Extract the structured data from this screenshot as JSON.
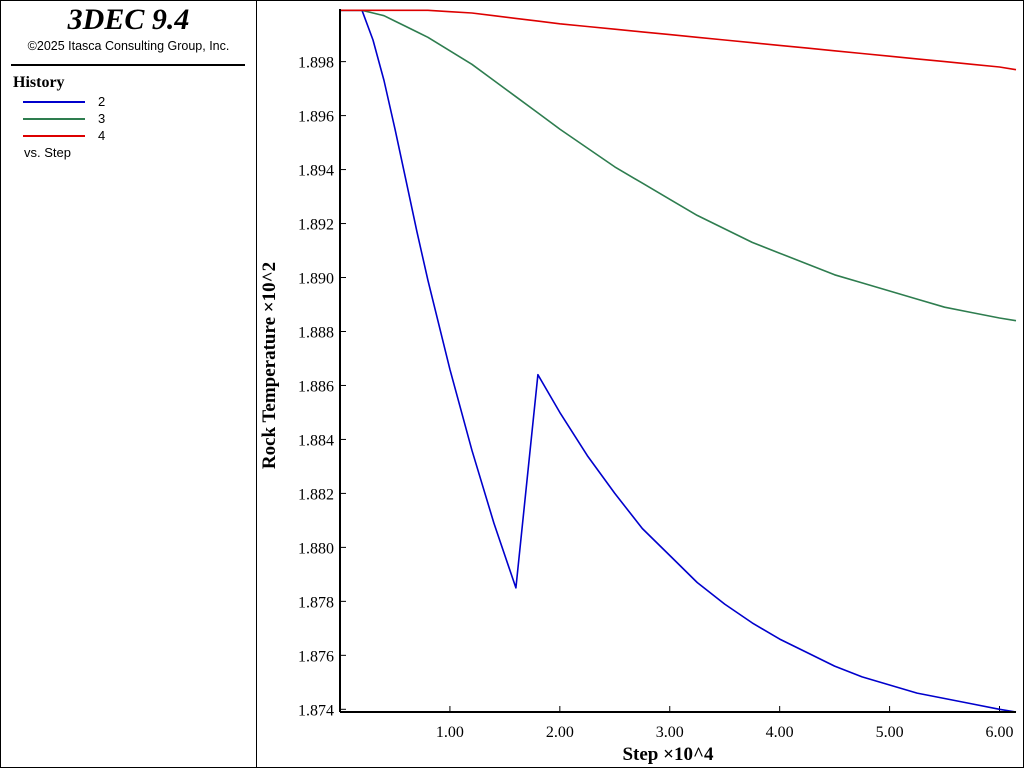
{
  "app": {
    "title": "3DEC 9.4",
    "copyright": "©2025 Itasca Consulting Group, Inc."
  },
  "legend": {
    "title": "History",
    "items": [
      {
        "label": "2",
        "color": "#0000cc"
      },
      {
        "label": "3",
        "color": "#2e7d4f"
      },
      {
        "label": "4",
        "color": "#dd0000"
      }
    ],
    "vs_label": "vs. Step"
  },
  "chart_data": {
    "type": "line",
    "xlabel": "Step ×10^4",
    "ylabel": "Rock Temperature ×10^2",
    "xlim": [
      0,
      6.15
    ],
    "ylim": [
      1.8739,
      1.89995
    ],
    "xticks": [
      1.0,
      2.0,
      3.0,
      4.0,
      5.0,
      6.0
    ],
    "xtick_labels": [
      "1.00",
      "2.00",
      "3.00",
      "4.00",
      "5.00",
      "6.00"
    ],
    "yticks": [
      1.874,
      1.876,
      1.878,
      1.88,
      1.882,
      1.884,
      1.886,
      1.888,
      1.89,
      1.892,
      1.894,
      1.896,
      1.898
    ],
    "ytick_labels": [
      "1.874",
      "1.876",
      "1.878",
      "1.880",
      "1.882",
      "1.884",
      "1.886",
      "1.888",
      "1.890",
      "1.892",
      "1.894",
      "1.896",
      "1.898"
    ],
    "grid": false,
    "x": [
      0.0,
      0.1,
      0.2,
      0.3,
      0.4,
      0.5,
      0.6,
      0.7,
      0.8,
      1.0,
      1.2,
      1.4,
      1.6,
      1.8,
      2.0,
      2.25,
      2.5,
      2.75,
      3.0,
      3.25,
      3.5,
      3.75,
      4.0,
      4.25,
      4.5,
      4.75,
      5.0,
      5.25,
      5.5,
      5.75,
      6.0,
      6.15
    ],
    "series": [
      {
        "name": "2",
        "color": "#0000cc",
        "values": [
          1.8999,
          1.8999,
          1.8999,
          1.8988,
          1.8973,
          1.8955,
          1.8936,
          1.8917,
          1.8899,
          1.8866,
          1.8836,
          1.8809,
          1.8785,
          1.8864,
          1.885,
          1.8834,
          1.882,
          1.8807,
          1.8797,
          1.8787,
          1.8779,
          1.8772,
          1.8766,
          1.8761,
          1.8756,
          1.8752,
          1.8749,
          1.8746,
          1.8744,
          1.8742,
          1.874,
          1.8739
        ]
      },
      {
        "name": "3",
        "color": "#2e7d4f",
        "values": [
          1.8999,
          1.8999,
          1.8999,
          1.8998,
          1.8997,
          1.8995,
          1.8993,
          1.8991,
          1.8989,
          1.8984,
          1.8979,
          1.8973,
          1.8967,
          1.8961,
          1.8955,
          1.8948,
          1.8941,
          1.8935,
          1.8929,
          1.8923,
          1.8918,
          1.8913,
          1.8909,
          1.8905,
          1.8901,
          1.8898,
          1.8895,
          1.8892,
          1.8889,
          1.8887,
          1.8885,
          1.8884
        ]
      },
      {
        "name": "4",
        "color": "#dd0000",
        "values": [
          1.8999,
          1.8999,
          1.8999,
          1.8999,
          1.8999,
          1.8999,
          1.8999,
          1.8999,
          1.8999,
          1.89985,
          1.8998,
          1.8997,
          1.8996,
          1.8995,
          1.8994,
          1.8993,
          1.8992,
          1.8991,
          1.899,
          1.8989,
          1.8988,
          1.8987,
          1.8986,
          1.8985,
          1.8984,
          1.8983,
          1.8982,
          1.8981,
          1.898,
          1.8979,
          1.8978,
          1.8977
        ]
      }
    ]
  }
}
